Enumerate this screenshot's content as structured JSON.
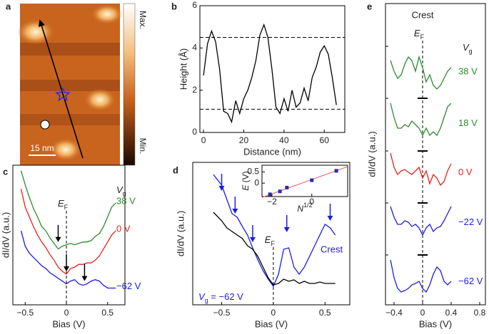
{
  "chart_data": [
    {
      "type": "image",
      "panel": "a",
      "colorbar_max": "Max.",
      "colorbar_min": "Min.",
      "scale_bar": "15 nm"
    },
    {
      "type": "line",
      "panel": "b",
      "xlabel": "Distance (nm)",
      "ylabel": "Height (Å)",
      "color": "#000000",
      "x": [
        0,
        2,
        4,
        6,
        8,
        10,
        12,
        14,
        16,
        18,
        20,
        22,
        24,
        26,
        28,
        30,
        32,
        34,
        36,
        38,
        40,
        42,
        44,
        46,
        48,
        50,
        52,
        54,
        56,
        58,
        60,
        62,
        64,
        66
      ],
      "values": [
        2.7,
        4.2,
        4.8,
        4.3,
        3.0,
        1.0,
        0.9,
        0.5,
        1.5,
        0.9,
        1.6,
        2.0,
        2.6,
        3.4,
        4.6,
        5.1,
        4.5,
        3.0,
        1.2,
        0.9,
        1.6,
        1.0,
        2.0,
        1.2,
        1.4,
        2.1,
        1.5,
        2.6,
        3.1,
        3.8,
        4.1,
        3.7,
        2.6,
        1.3
      ],
      "xlim": [
        -1.8,
        70.2
      ],
      "ylim": [
        0,
        6
      ],
      "xticks": [
        0,
        20,
        40,
        60
      ],
      "yticks": [
        0,
        2,
        4,
        6
      ],
      "hlines": [
        4.5,
        1.1
      ]
    },
    {
      "type": "line",
      "panel": "c",
      "xlabel": "Bias (V)",
      "ylabel": "dI/dV (a.u.)",
      "x": [
        -0.55,
        -0.5,
        -0.45,
        -0.4,
        -0.35,
        -0.3,
        -0.25,
        -0.2,
        -0.15,
        -0.1,
        -0.05,
        0,
        0.05,
        0.1,
        0.15,
        0.2,
        0.25,
        0.3,
        0.35,
        0.4,
        0.45,
        0.5,
        0.55,
        0.6
      ],
      "series": [
        {
          "name": "38 V",
          "color": "#2e8b2e",
          "values": [
            9.6,
            8.6,
            7.7,
            6.9,
            6.3,
            5.6,
            5.3,
            4.8,
            4.4,
            4.0,
            4.2,
            4.3,
            4.4,
            4.3,
            4.4,
            4.5,
            4.5,
            4.6,
            4.9,
            5.1,
            5.6,
            6.3,
            7.0,
            7.3
          ]
        },
        {
          "name": "0 V",
          "color": "#e8211d",
          "values": [
            8.3,
            7.0,
            6.3,
            5.6,
            5.0,
            4.5,
            4.1,
            3.6,
            3.2,
            2.7,
            2.4,
            2.2,
            2.6,
            2.7,
            2.9,
            2.9,
            3.0,
            3.0,
            3.2,
            3.5,
            4.0,
            4.5,
            5.0,
            5.3
          ]
        },
        {
          "name": "−62 V",
          "color": "#1d1de0",
          "values": [
            5.3,
            4.2,
            3.7,
            3.4,
            3.1,
            2.8,
            2.6,
            2.3,
            2.1,
            1.9,
            1.7,
            1.5,
            1.7,
            1.8,
            1.5,
            1.4,
            1.5,
            1.7,
            1.8,
            1.7,
            1.4,
            1.2,
            1.2,
            1.2
          ]
        }
      ],
      "xlim": [
        -0.65,
        0.71
      ],
      "ylim": [
        0,
        10
      ],
      "xticks": [
        {
          "value": -0.5,
          "label": "−0.5"
        },
        0,
        0.5
      ],
      "fermi_label": {
        "main": "E",
        "sub": "F"
      },
      "gate_label": {
        "main": "V",
        "sub": "g"
      },
      "arrows": [
        {
          "x": -0.1,
          "y": 4.5
        },
        {
          "x": 0,
          "y": 2.4
        },
        {
          "x": 0.22,
          "y": 1.7
        }
      ],
      "arrow_color": "#000000"
    },
    {
      "type": "line",
      "panel": "d",
      "xlabel": "Bias (V)",
      "ylabel": "dI/dV (a.u.)",
      "x": [
        -0.58,
        -0.5,
        -0.45,
        -0.4,
        -0.35,
        -0.3,
        -0.25,
        -0.2,
        -0.15,
        -0.1,
        -0.05,
        0,
        0.05,
        0.1,
        0.15,
        0.2,
        0.25,
        0.3,
        0.35,
        0.4,
        0.45,
        0.5,
        0.55,
        0.6
      ],
      "series": [
        {
          "color": "#1d1de0",
          "values": [
            9.15,
            8.4,
            7.4,
            6.4,
            6.15,
            5.5,
            4.9,
            4.0,
            3.15,
            2.4,
            1.8,
            1.3,
            2.15,
            3.9,
            4.0,
            2.65,
            2.15,
            2.65,
            3.4,
            4.15,
            4.9,
            5.65,
            5.4,
            4.9
          ]
        },
        {
          "color": "#000000",
          "values": [
            6.5,
            5.9,
            5.4,
            5.15,
            4.9,
            4.65,
            4.15,
            3.9,
            3.4,
            2.65,
            1.9,
            1.4,
            1.5,
            1.8,
            1.65,
            1.75,
            1.5,
            1.65,
            1.5,
            1.5,
            1.6,
            1.5,
            1.5,
            1.5
          ]
        }
      ],
      "xlim": [
        -0.78,
        0.74
      ],
      "ylim": [
        0,
        10
      ],
      "xticks": [
        {
          "value": -0.5,
          "label": "−0.5"
        },
        0,
        0.5
      ],
      "fermi_label": {
        "main": "E",
        "sub": "F"
      },
      "gate_label": {
        "main": "V",
        "sub": "g",
        "rest": " = −62 V"
      },
      "curve_label": "Crest",
      "arrows": [
        {
          "x": -0.5,
          "y": 8.0
        },
        {
          "x": -0.37,
          "y": 6.4
        },
        {
          "x": -0.2,
          "y": 4.4
        },
        {
          "x": 0.13,
          "y": 5.1
        },
        {
          "x": 0.55,
          "y": 5.9
        }
      ],
      "arrow_color": "#1d1de0",
      "inset": {
        "type": "scatter",
        "xlabel": {
          "main": "N",
          "sup": "1/2"
        },
        "ylabel": {
          "main": "E",
          "rest": " (V)"
        },
        "x": [
          -2.1,
          -1.6,
          -1.25,
          0,
          1.23
        ],
        "values": [
          -0.5,
          -0.37,
          -0.2,
          0.13,
          0.55
        ],
        "color": "#2a2ab0",
        "fit": {
          "slope": 0.32,
          "intercept": 0.16,
          "color": "#e06060"
        },
        "xlim": [
          -2.5,
          1.8
        ],
        "ylim": [
          -0.6,
          0.8
        ],
        "xticks": [
          {
            "value": -2,
            "label": "−2"
          },
          0
        ],
        "yticks": [
          0,
          0.5
        ]
      }
    },
    {
      "type": "line",
      "panel": "e",
      "title": "Crest",
      "xlabel": "Bias (V)",
      "ylabel": "dI/dV (a.u.)",
      "x": [
        -0.45,
        -0.4,
        -0.35,
        -0.3,
        -0.25,
        -0.2,
        -0.15,
        -0.1,
        -0.05,
        0,
        0.05,
        0.1,
        0.15,
        0.2,
        0.25,
        0.3,
        0.35,
        0.4
      ],
      "series": [
        {
          "name": "38 V",
          "color": "#2e8b2e",
          "values": [
            34.3,
            32.8,
            31.8,
            32.3,
            33.8,
            34.8,
            34.3,
            32.8,
            34.8,
            33.3,
            31.3,
            32.3,
            30.8,
            30.3,
            30.8,
            31.8,
            32.8,
            33.3
          ]
        },
        {
          "name": "18 V",
          "color": "#2e8b2e",
          "values": [
            28.3,
            26.3,
            24.8,
            24.8,
            25.3,
            25.0,
            25.8,
            25.3,
            24.8,
            23.8,
            24.8,
            23.8,
            24.3,
            23.8,
            24.8,
            26.3,
            27.8,
            28.3
          ]
        },
        {
          "name": "0 V",
          "color": "#e8211d",
          "values": [
            21.3,
            19.3,
            18.3,
            18.8,
            19.0,
            18.6,
            18.3,
            18.8,
            19.3,
            17.8,
            18.8,
            17.0,
            18.3,
            17.8,
            16.8,
            17.3,
            18.8,
            19.8
          ]
        },
        {
          "name": "−22 V",
          "color": "#1d1de0",
          "values": [
            13.8,
            12.3,
            11.3,
            11.3,
            11.8,
            11.6,
            11.0,
            11.3,
            10.8,
            9.8,
            10.8,
            11.3,
            10.3,
            10.8,
            11.0,
            11.8,
            12.8,
            13.8
          ]
        },
        {
          "name": "−62 V",
          "color": "#1d1de0",
          "values": [
            6.3,
            3.8,
            2.3,
            1.8,
            2.0,
            2.3,
            2.8,
            3.0,
            3.3,
            2.3,
            1.8,
            2.8,
            4.3,
            5.3,
            4.8,
            3.3,
            2.8,
            3.3
          ]
        }
      ],
      "xlim": [
        -0.52,
        0.88
      ],
      "ylim": [
        0,
        42.3
      ],
      "xticks": [
        {
          "value": -0.4,
          "label": "−0.4"
        },
        0,
        0.4,
        0.8
      ],
      "ytick_marks": [
        36.3,
        29.0,
        21.6,
        14.3,
        7.0
      ],
      "baseline_marks": [
        29.0,
        21.6,
        14.3,
        7.0
      ],
      "fermi_label": {
        "main": "E",
        "sub": "F"
      },
      "gate_label": {
        "main": "V",
        "sub": "g"
      }
    }
  ]
}
